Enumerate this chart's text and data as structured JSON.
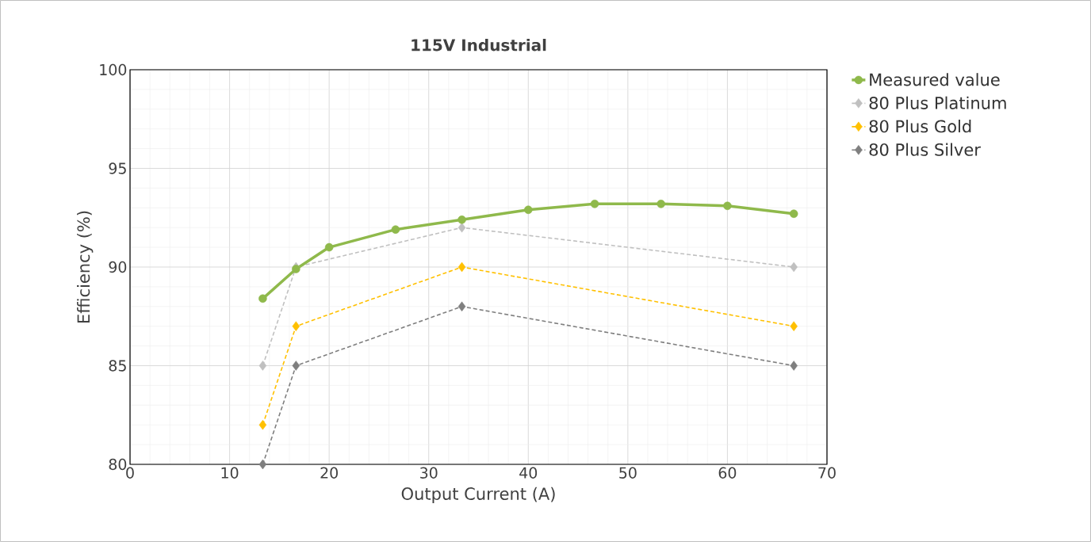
{
  "chart_data": {
    "type": "line",
    "title": "115V Industrial",
    "xlabel": "Output Current (A)",
    "ylabel": "Efficiency (%)",
    "xlim": [
      0,
      70
    ],
    "ylim": [
      80,
      100
    ],
    "xticks": [
      0,
      10,
      20,
      30,
      40,
      50,
      60,
      70
    ],
    "yticks": [
      80,
      85,
      90,
      95,
      100
    ],
    "grid": true,
    "legend": "right",
    "series": [
      {
        "name": "Measured value",
        "color": "#8fb94b",
        "marker": "circle",
        "line_style": "solid",
        "x": [
          13.33,
          16.67,
          20,
          26.67,
          33.33,
          40,
          46.67,
          53.33,
          60,
          66.67
        ],
        "values": [
          88.4,
          89.9,
          91.0,
          91.9,
          92.4,
          92.9,
          93.2,
          93.2,
          93.1,
          92.7
        ]
      },
      {
        "name": "80 Plus Platinum",
        "color": "#c0c0c0",
        "marker": "diamond",
        "line_style": "dashed",
        "x": [
          13.33,
          16.67,
          33.33,
          66.67
        ],
        "values": [
          85,
          90,
          92,
          90
        ]
      },
      {
        "name": "80 Plus Gold",
        "color": "#ffc000",
        "marker": "diamond",
        "line_style": "dashed",
        "x": [
          13.33,
          16.67,
          33.33,
          66.67
        ],
        "values": [
          82,
          87,
          90,
          87
        ]
      },
      {
        "name": "80 Plus Silver",
        "color": "#7f7f7f",
        "marker": "diamond",
        "line_style": "dashed",
        "x": [
          13.33,
          16.67,
          33.33,
          66.67
        ],
        "values": [
          80,
          85,
          88,
          85
        ]
      }
    ]
  }
}
